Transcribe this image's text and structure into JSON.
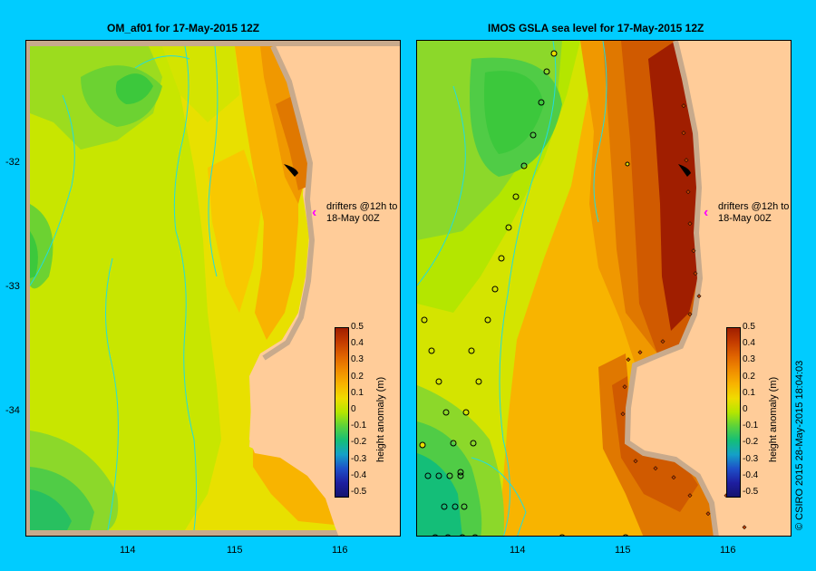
{
  "panels": [
    {
      "title": "OM_af01  for 17-May-2015 12Z"
    },
    {
      "title": "IMOS GSLA sea level  for 17-May-2015 12Z"
    }
  ],
  "lat_ticks": [
    "-32",
    "-33",
    "-34"
  ],
  "lon_ticks": [
    "114",
    "115",
    "116"
  ],
  "colorbar": {
    "title": "height anomaly (m)",
    "labels": [
      "0.5",
      "0.4",
      "0.3",
      "0.2",
      "0.1",
      "0",
      "-0.1",
      "-0.2",
      "-0.3",
      "-0.4",
      "-0.5"
    ],
    "colors": [
      "#a01e00",
      "#c43c00",
      "#e06400",
      "#f08c00",
      "#f8b400",
      "#f0dc00",
      "#b4e600",
      "#5ad23c",
      "#14be78",
      "#14a0c8",
      "#1e50c8",
      "#1e1ea0",
      "#14146e"
    ]
  },
  "drifter_note": {
    "line1": "drifters @12h to",
    "line2": "18-May 00Z"
  },
  "credit": "© CSIRO 2015   28-May-2015 18:04:03"
}
